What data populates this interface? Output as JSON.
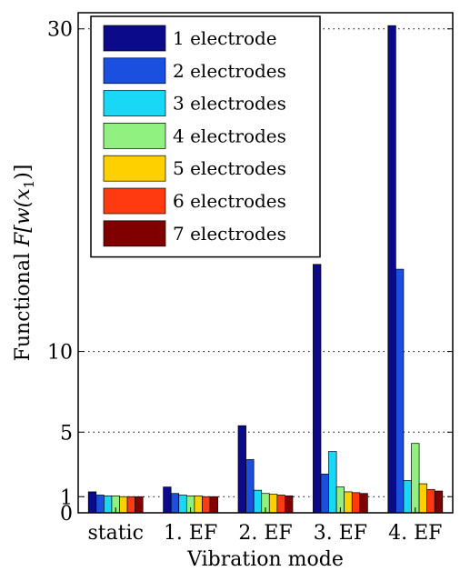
{
  "chart_data": {
    "type": "bar",
    "xlabel": "Vibration mode",
    "ylabel_prefix": "Functional ",
    "ylabel_math": "F[w(x",
    "ylabel_sub": "1",
    "ylabel_suffix": ")]",
    "ylim": [
      0,
      31
    ],
    "yticks": [
      0,
      1,
      5,
      10,
      30
    ],
    "grid": "dotted at y ticks",
    "legend_placement": "top-left",
    "categories": [
      "static",
      "1. EF",
      "2. EF",
      "3. EF",
      "4. EF"
    ],
    "series": [
      {
        "name": "1 electrode",
        "color": "#0a0a8a",
        "values": [
          1.3,
          1.6,
          5.4,
          15.4,
          30.2
        ]
      },
      {
        "name": "2 electrodes",
        "color": "#1a4fe0",
        "values": [
          1.1,
          1.2,
          3.3,
          2.4,
          15.1
        ]
      },
      {
        "name": "3 electrodes",
        "color": "#18d8f5",
        "values": [
          1.05,
          1.1,
          1.4,
          3.8,
          2.0
        ]
      },
      {
        "name": "4 electrodes",
        "color": "#90f080",
        "values": [
          1.05,
          1.05,
          1.2,
          1.6,
          4.3
        ]
      },
      {
        "name": "5 electrodes",
        "color": "#ffd000",
        "values": [
          1.0,
          1.05,
          1.15,
          1.3,
          1.8
        ]
      },
      {
        "name": "6 electrodes",
        "color": "#ff3a10",
        "values": [
          1.0,
          1.0,
          1.1,
          1.25,
          1.45
        ]
      },
      {
        "name": "7 electrodes",
        "color": "#800000",
        "values": [
          1.0,
          1.0,
          1.05,
          1.2,
          1.35
        ]
      }
    ]
  }
}
